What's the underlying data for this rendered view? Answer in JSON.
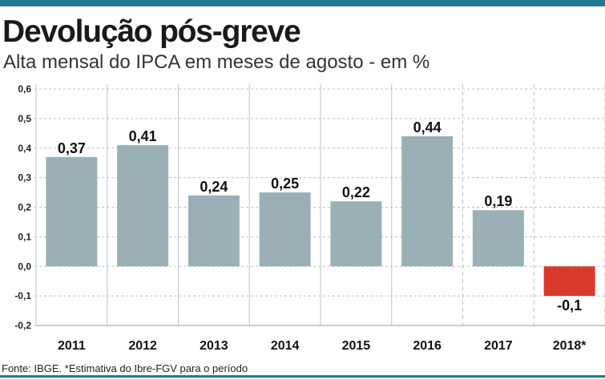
{
  "title": "Devolução pós-greve",
  "subtitle": "Alta mensal do IPCA em meses de agosto - em %",
  "source": "Fonte: IBGE. *Estimativa do Ibre-FGV para o período",
  "colors": {
    "accent": "#1f7a94",
    "bar": "#9bb0b6",
    "negative_bar": "#d93a2b"
  },
  "chart_data": {
    "type": "bar",
    "categories": [
      "2011",
      "2012",
      "2013",
      "2014",
      "2015",
      "2016",
      "2017",
      "2018*"
    ],
    "values": [
      0.37,
      0.41,
      0.24,
      0.25,
      0.22,
      0.44,
      0.19,
      -0.1
    ],
    "value_labels": [
      "0,37",
      "0,41",
      "0,24",
      "0,25",
      "0,22",
      "0,44",
      "0,19",
      "-0,1"
    ],
    "y_ticks": [
      "0,6",
      "0,5",
      "0,4",
      "0,3",
      "0,2",
      "0,1",
      "0,0",
      "-0,1",
      "-0,2"
    ],
    "y_tick_values": [
      0.6,
      0.5,
      0.4,
      0.3,
      0.2,
      0.1,
      0.0,
      -0.1,
      -0.2
    ],
    "ylim": [
      -0.2,
      0.6
    ],
    "grid": true,
    "dashed_columns_from": 6
  }
}
